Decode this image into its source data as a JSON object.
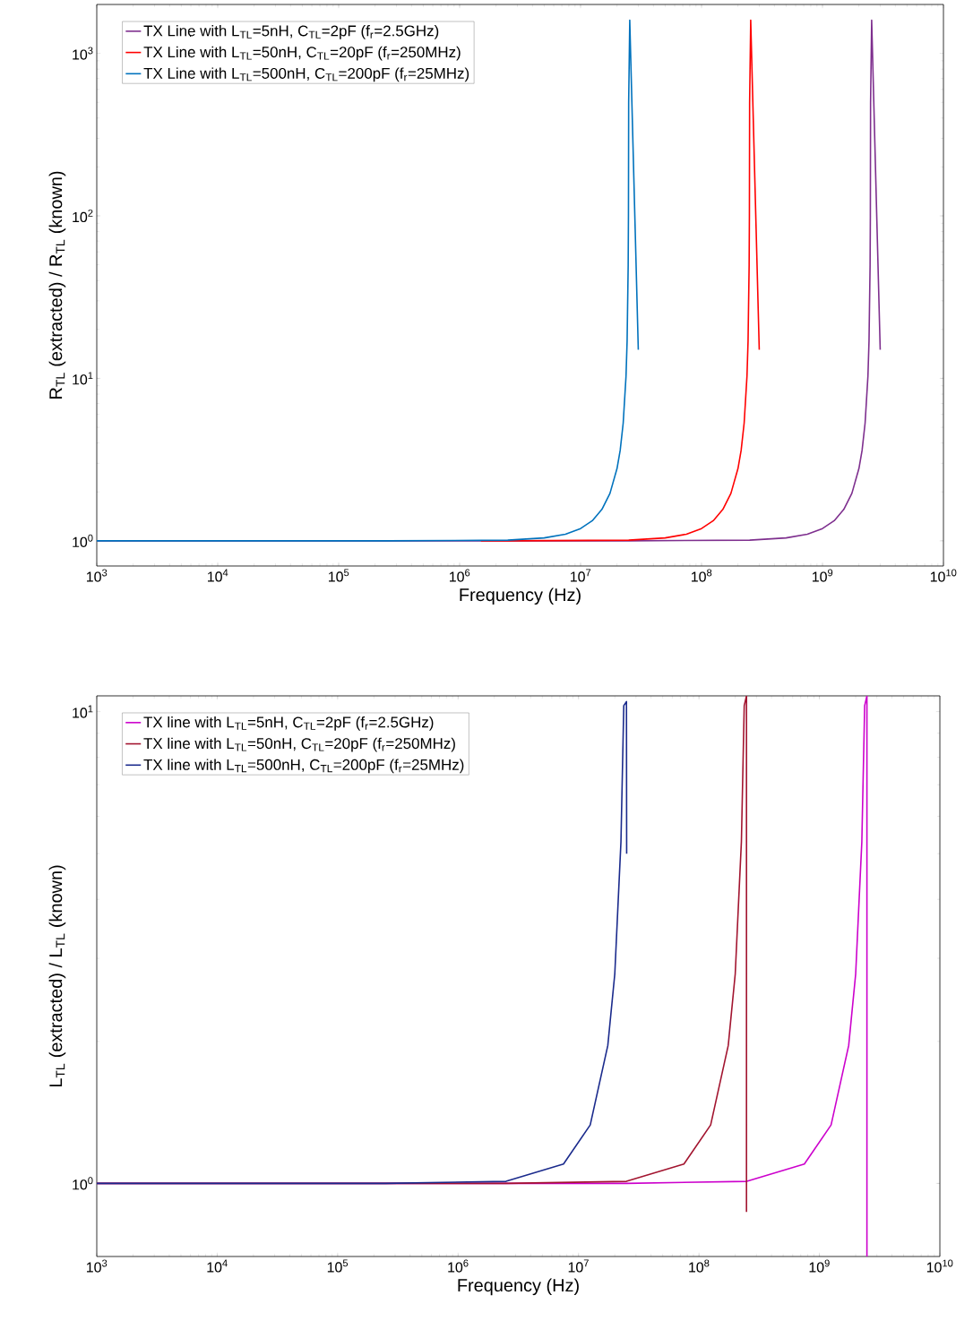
{
  "chart_data": [
    {
      "type": "line",
      "log": "xy",
      "xlabel": "Frequency (Hz)",
      "ylabel": "R$_{TL}$ (extracted) / R$_{TL}$ (known)",
      "legend": "top left",
      "xlim": [
        1000,
        10000000000
      ],
      "ylim": [
        0.7,
        2000
      ],
      "xticks": [
        {
          "value": 1000,
          "label": "10$^{3}$"
        },
        {
          "value": 10000,
          "label": "10$^{4}$"
        },
        {
          "value": 100000,
          "label": "10$^{5}$"
        },
        {
          "value": 1000000,
          "label": "10$^{6}$"
        },
        {
          "value": 10000000,
          "label": "10$^{7}$"
        },
        {
          "value": 100000000,
          "label": "10$^{8}$"
        },
        {
          "value": 1000000000,
          "label": "10$^{9}$"
        },
        {
          "value": 10000000000,
          "label": "10$^{10}$"
        }
      ],
      "yticks": [
        {
          "value": 1,
          "label": "10$^{0}$"
        },
        {
          "value": 10,
          "label": "10$^{1}$"
        },
        {
          "value": 100,
          "label": "10$^{2}$"
        },
        {
          "value": 1000,
          "label": "10$^{3}$"
        }
      ],
      "series": [
        {
          "name": "TX Line with L$_{TL}$=5nH, C$_{TL}$=2pF (f$_{r}$=2.5GHz)",
          "color": "#7e2f8e",
          "x": [
            1000,
            25000000,
            250000000,
            500000000,
            750000000,
            1000000000,
            1250000000,
            1500000000,
            1750000000,
            2000000000,
            2125000000,
            2250000000,
            2375000000,
            2425000000,
            2475000000,
            2487500000,
            2497500000,
            2550000000,
            3000000000
          ],
          "values": [
            1,
            1,
            1.01,
            1.042,
            1.099,
            1.19,
            1.33,
            1.56,
            1.96,
            2.78,
            3.6,
            5.3,
            10.3,
            17,
            50,
            100,
            500,
            1600,
            15
          ]
        },
        {
          "name": "TX Line with L$_{TL}$=50nH, C$_{TL}$=20pF (f$_{r}$=250MHz)",
          "color": "#ff0000",
          "x": [
            1500000,
            2500000,
            25000000,
            50000000,
            75000000,
            100000000,
            125000000,
            150000000,
            175000000,
            200000000,
            212500000,
            225000000,
            237500000,
            242500000,
            247500000,
            248750000,
            249750000,
            255000000,
            300000000
          ],
          "values": [
            1,
            1,
            1.01,
            1.042,
            1.099,
            1.19,
            1.33,
            1.56,
            1.96,
            2.78,
            3.6,
            5.3,
            10.3,
            17,
            50,
            100,
            500,
            1600,
            15
          ]
        },
        {
          "name": "TX Line with L$_{TL}$=500nH, C$_{TL}$=200pF (f$_{r}$=25MHz)",
          "color": "#0072bd",
          "x": [
            1000,
            250000,
            2500000,
            5000000,
            7500000,
            10000000,
            12500000,
            15000000,
            17500000,
            20000000,
            21250000,
            22500000,
            23750000,
            24250000,
            24750000,
            24875000,
            24975000,
            25500000,
            30000000
          ],
          "values": [
            1,
            1,
            1.01,
            1.042,
            1.099,
            1.19,
            1.33,
            1.56,
            1.96,
            2.78,
            3.6,
            5.3,
            10.3,
            17,
            50,
            100,
            500,
            1600,
            15
          ]
        }
      ]
    },
    {
      "type": "line",
      "log": "xy",
      "xlabel": "Frequency (Hz)",
      "ylabel": "L$_{TL}$ (extracted) / L$_{TL}$ (known)",
      "legend": "top left",
      "xlim": [
        1000,
        10000000000
      ],
      "ylim": [
        0.7,
        10.8
      ],
      "xticks": [
        {
          "value": 1000,
          "label": "10$^{3}$"
        },
        {
          "value": 10000,
          "label": "10$^{4}$"
        },
        {
          "value": 100000,
          "label": "10$^{5}$"
        },
        {
          "value": 1000000,
          "label": "10$^{6}$"
        },
        {
          "value": 10000000,
          "label": "10$^{7}$"
        },
        {
          "value": 100000000,
          "label": "10$^{8}$"
        },
        {
          "value": 1000000000,
          "label": "10$^{9}$"
        },
        {
          "value": 10000000000,
          "label": "10$^{10}$"
        }
      ],
      "yticks": [
        {
          "value": 1,
          "label": "10$^{0}$"
        },
        {
          "value": 10,
          "label": "10$^{1}$"
        }
      ],
      "series": [
        {
          "name": "TX line with L$_{TL}$=5nH, C$_{TL}$=2pF (f$_{r}$=2.5GHz)",
          "color": "#cc00cc",
          "x": [
            1000,
            25000000,
            250000000,
            750000000,
            1250000000,
            1750000000,
            2000000000,
            2250000000,
            2375000000,
            2480000000,
            2480000000
          ],
          "values": [
            1,
            1,
            1.01,
            1.099,
            1.33,
            1.96,
            2.78,
            5.3,
            10.3,
            10.8,
            0.7
          ]
        },
        {
          "name": "TX line with L$_{TL}$=50nH, C$_{TL}$=20pF (f$_{r}$=250MHz)",
          "color": "#a2142f",
          "x": [
            1000,
            2500000,
            25000000,
            75000000,
            125000000,
            175000000,
            200000000,
            225000000,
            237500000,
            248000000,
            248000000
          ],
          "values": [
            1,
            1,
            1.01,
            1.099,
            1.33,
            1.96,
            2.78,
            5.3,
            10.3,
            10.8,
            0.87
          ]
        },
        {
          "name": "TX line with L$_{TL}$=500nH, C$_{TL}$=200pF (f$_{r}$=25MHz)",
          "color": "#1a2a8c",
          "x": [
            1000,
            250000,
            2500000,
            7500000,
            12500000,
            17500000,
            20000000,
            22500000,
            23750000,
            25000000,
            25100000
          ],
          "values": [
            1,
            1,
            1.01,
            1.099,
            1.33,
            1.96,
            2.78,
            5.3,
            10.3,
            10.5,
            5.0
          ]
        }
      ]
    }
  ]
}
